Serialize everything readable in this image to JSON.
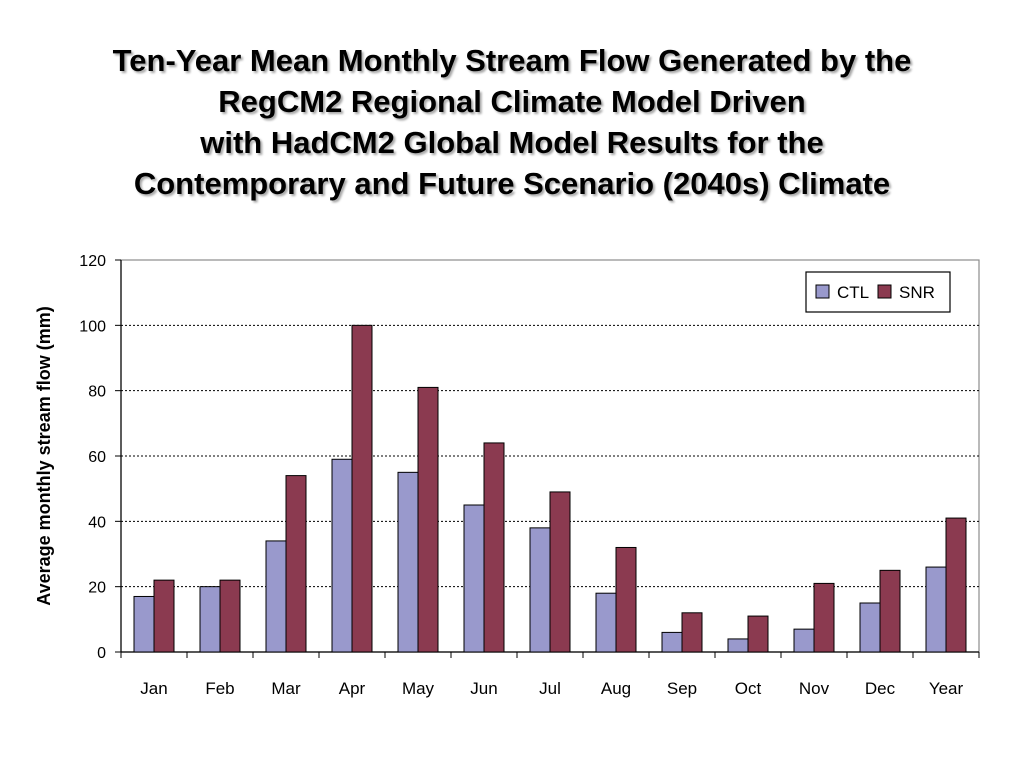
{
  "title_lines": [
    "Ten-Year Mean Monthly Stream Flow Generated by the",
    "RegCM2 Regional Climate Model Driven",
    "with HadCM2 Global Model Results for the",
    "Contemporary and Future Scenario (2040s) Climate"
  ],
  "chart_data": {
    "type": "bar",
    "title": "Ten-Year Mean Monthly Stream Flow Generated by the RegCM2 Regional Climate Model Driven with HadCM2 Global Model Results for the Contemporary and Future Scenario (2040s) Climate",
    "xlabel": "",
    "ylabel": "Average monthly stream flow (mm)",
    "ylim": [
      0,
      120
    ],
    "yticks": [
      0,
      20,
      40,
      60,
      80,
      100,
      120
    ],
    "grid": "horizontal dotted",
    "legend_position": "top-right",
    "categories": [
      "Jan",
      "Feb",
      "Mar",
      "Apr",
      "May",
      "Jun",
      "Jul",
      "Aug",
      "Sep",
      "Oct",
      "Nov",
      "Dec",
      "Year"
    ],
    "series": [
      {
        "name": "CTL",
        "color": "#9999cc",
        "values": [
          17,
          20,
          34,
          59,
          55,
          45,
          38,
          18,
          6,
          4,
          7,
          15,
          26
        ]
      },
      {
        "name": "SNR",
        "color": "#8b3a50",
        "values": [
          22,
          22,
          54,
          100,
          81,
          64,
          49,
          32,
          12,
          11,
          21,
          25,
          41
        ]
      }
    ]
  }
}
